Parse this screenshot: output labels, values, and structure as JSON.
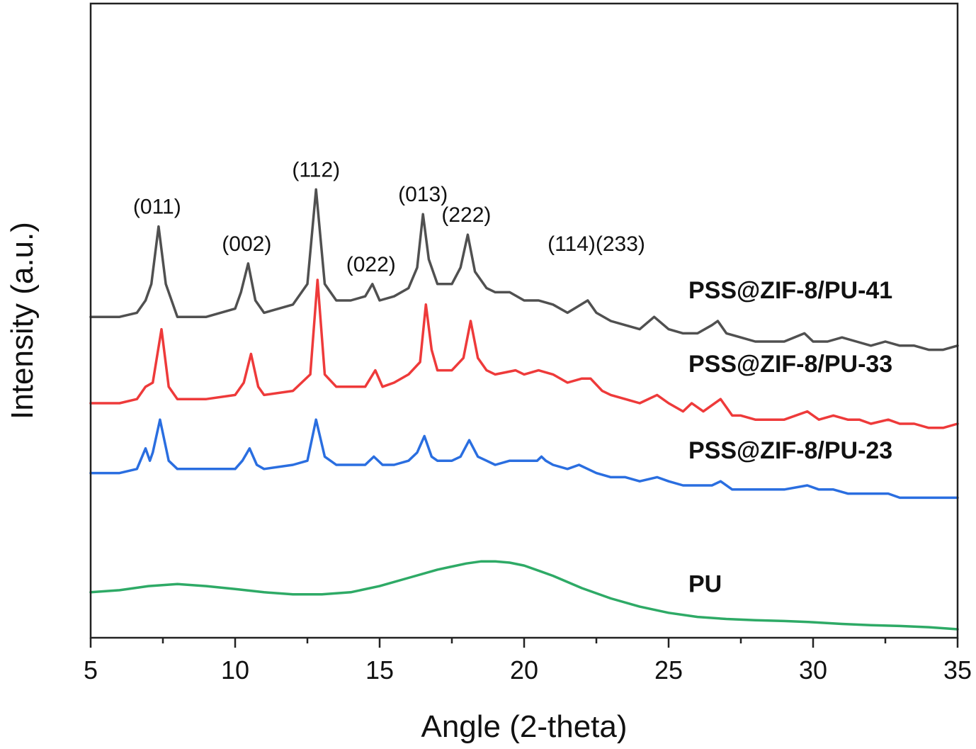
{
  "chart_data": {
    "type": "line",
    "title": "",
    "xlabel": "Angle (2-theta)",
    "ylabel": "Intensity (a.u.)",
    "xlim": [
      5,
      35
    ],
    "ylim": [
      0,
      100
    ],
    "x_ticks": [
      5,
      10,
      15,
      20,
      25,
      30,
      35
    ],
    "x_tick_labels": [
      "5",
      "10",
      "15",
      "20",
      "25",
      "30",
      "35"
    ],
    "y_ticks_shown": false,
    "grid": false,
    "legend": "none (series labelled directly at right)",
    "peak_labels": [
      {
        "text": "(011)",
        "x": 7.3
      },
      {
        "text": "(002)",
        "x": 10.4
      },
      {
        "text": "(112)",
        "x": 12.8
      },
      {
        "text": "(022)",
        "x": 14.7
      },
      {
        "text": "(013)",
        "x": 16.5
      },
      {
        "text": "(222)",
        "x": 18.0
      },
      {
        "text": "(114)(233)",
        "x": 22.5
      }
    ],
    "series": [
      {
        "name": "PSS@ZIF-8/PU-41",
        "color": "#505050",
        "x": [
          5.0,
          6.0,
          6.6,
          6.9,
          7.1,
          7.35,
          7.6,
          8.0,
          9.0,
          10.0,
          10.2,
          10.45,
          10.7,
          11.0,
          12.0,
          12.5,
          12.8,
          13.1,
          13.5,
          14.0,
          14.5,
          14.75,
          15.0,
          15.5,
          16.0,
          16.3,
          16.5,
          16.7,
          17.0,
          17.5,
          17.8,
          18.05,
          18.3,
          18.7,
          19.0,
          19.5,
          20.0,
          20.5,
          21.0,
          21.5,
          22.2,
          22.5,
          23.0,
          23.5,
          24.0,
          24.5,
          25.0,
          25.5,
          26.0,
          26.5,
          26.7,
          27.0,
          27.5,
          28.0,
          28.5,
          29.0,
          29.7,
          30.0,
          30.5,
          31.0,
          31.5,
          32.0,
          32.5,
          33.0,
          33.5,
          34.0,
          34.5,
          35.0
        ],
        "y": [
          76.0,
          76.0,
          77.0,
          80.0,
          84.0,
          98.0,
          84.0,
          76.0,
          76.0,
          78.0,
          82.0,
          89.0,
          80.0,
          77.0,
          79.0,
          84.0,
          107.0,
          84.0,
          80.0,
          80.0,
          81.0,
          84.0,
          80.0,
          81.0,
          83.0,
          88.0,
          101.0,
          90.0,
          84.0,
          84.0,
          88.0,
          96.0,
          87.0,
          83.0,
          82.0,
          82.0,
          80.0,
          80.0,
          79.0,
          77.0,
          80.0,
          77.0,
          75.0,
          74.0,
          73.0,
          76.0,
          73.0,
          72.0,
          72.0,
          74.0,
          75.0,
          72.0,
          71.0,
          70.0,
          70.0,
          70.0,
          72.0,
          70.0,
          70.0,
          71.0,
          70.0,
          69.0,
          70.0,
          69.0,
          69.0,
          68.0,
          68.0,
          69.0
        ]
      },
      {
        "name": "PSS@ZIF-8/PU-33",
        "color": "#ee3a3a",
        "x": [
          5.0,
          6.0,
          6.6,
          6.9,
          7.15,
          7.45,
          7.7,
          8.0,
          9.0,
          10.0,
          10.3,
          10.55,
          10.8,
          11.0,
          12.0,
          12.6,
          12.85,
          13.1,
          13.5,
          14.0,
          14.5,
          14.85,
          15.1,
          15.5,
          16.0,
          16.4,
          16.6,
          16.8,
          17.0,
          17.5,
          17.9,
          18.15,
          18.4,
          18.7,
          19.0,
          19.7,
          20.0,
          20.5,
          21.0,
          21.5,
          22.0,
          22.3,
          22.7,
          23.0,
          23.5,
          24.0,
          24.6,
          25.0,
          25.5,
          25.8,
          26.2,
          26.8,
          27.2,
          27.5,
          28.0,
          28.5,
          29.0,
          29.8,
          30.2,
          30.7,
          31.2,
          31.6,
          32.0,
          32.6,
          33.0,
          33.5,
          34.0,
          34.5,
          35.0
        ],
        "y": [
          55.0,
          55.0,
          56.0,
          59.0,
          60.0,
          73.0,
          59.0,
          56.0,
          56.0,
          57.0,
          60.0,
          67.0,
          59.0,
          57.0,
          58.0,
          62.0,
          85.0,
          62.0,
          59.0,
          59.0,
          59.0,
          63.0,
          59.0,
          60.0,
          62.0,
          65.0,
          79.0,
          68.0,
          63.0,
          63.0,
          66.0,
          75.0,
          66.0,
          63.0,
          62.0,
          63.0,
          62.0,
          63.0,
          62.0,
          60.0,
          61.0,
          61.0,
          58.0,
          57.0,
          56.0,
          55.0,
          57.0,
          55.0,
          53.0,
          55.0,
          53.0,
          56.0,
          52.0,
          52.0,
          51.0,
          51.0,
          51.0,
          53.0,
          51.0,
          52.0,
          51.0,
          51.0,
          50.0,
          51.0,
          50.0,
          50.0,
          49.0,
          49.0,
          50.0
        ]
      },
      {
        "name": "PSS@ZIF-8/PU-23",
        "color": "#2a6ee0",
        "x": [
          5.0,
          6.0,
          6.6,
          6.9,
          7.05,
          7.15,
          7.4,
          7.7,
          8.0,
          9.0,
          10.0,
          10.25,
          10.5,
          10.75,
          11.0,
          12.0,
          12.5,
          12.8,
          13.1,
          13.5,
          14.0,
          14.5,
          14.8,
          15.1,
          15.5,
          16.0,
          16.3,
          16.55,
          16.8,
          17.0,
          17.5,
          17.8,
          18.1,
          18.4,
          18.7,
          19.0,
          19.5,
          20.0,
          20.45,
          20.6,
          20.75,
          21.0,
          21.5,
          21.9,
          22.2,
          22.5,
          23.0,
          23.5,
          24.0,
          24.6,
          25.0,
          25.5,
          26.0,
          26.5,
          26.8,
          27.2,
          27.5,
          28.0,
          28.5,
          29.0,
          29.8,
          30.2,
          30.7,
          31.2,
          31.6,
          32.0,
          32.6,
          33.0,
          33.5,
          34.0,
          34.5,
          35.0
        ],
        "y": [
          38.0,
          38.0,
          39.0,
          44.0,
          41.0,
          43.0,
          51.0,
          41.0,
          39.0,
          39.0,
          39.0,
          41.0,
          44.0,
          40.0,
          39.0,
          40.0,
          41.0,
          51.0,
          42.0,
          40.0,
          40.0,
          40.0,
          42.0,
          40.0,
          40.0,
          41.0,
          43.0,
          47.0,
          42.0,
          41.0,
          41.0,
          42.0,
          46.0,
          42.0,
          41.0,
          40.0,
          41.0,
          41.0,
          41.0,
          42.0,
          41.0,
          40.0,
          39.0,
          40.0,
          39.0,
          38.0,
          37.0,
          37.0,
          36.0,
          37.0,
          36.0,
          35.0,
          35.0,
          35.0,
          36.0,
          34.0,
          34.0,
          34.0,
          34.0,
          34.0,
          35.0,
          34.0,
          34.0,
          33.0,
          33.0,
          33.0,
          33.0,
          32.0,
          32.0,
          32.0,
          32.0,
          32.0
        ]
      },
      {
        "name": "PU",
        "color": "#2eaa66",
        "x": [
          5.0,
          6.0,
          7.0,
          8.0,
          9.0,
          10.0,
          11.0,
          12.0,
          13.0,
          14.0,
          15.0,
          16.0,
          17.0,
          18.0,
          18.5,
          19.0,
          19.5,
          20.0,
          21.0,
          22.0,
          23.0,
          24.0,
          25.0,
          26.0,
          27.0,
          28.0,
          29.0,
          30.0,
          31.0,
          32.0,
          33.0,
          34.0,
          35.0
        ],
        "y": [
          9.0,
          9.5,
          10.5,
          11.0,
          10.5,
          9.8,
          9.0,
          8.5,
          8.5,
          9.0,
          10.5,
          12.5,
          14.5,
          16.0,
          16.5,
          16.5,
          16.2,
          15.5,
          13.0,
          10.0,
          7.5,
          5.5,
          4.0,
          3.0,
          2.5,
          2.2,
          2.0,
          1.7,
          1.3,
          1.0,
          0.8,
          0.5,
          0.0
        ]
      }
    ]
  }
}
